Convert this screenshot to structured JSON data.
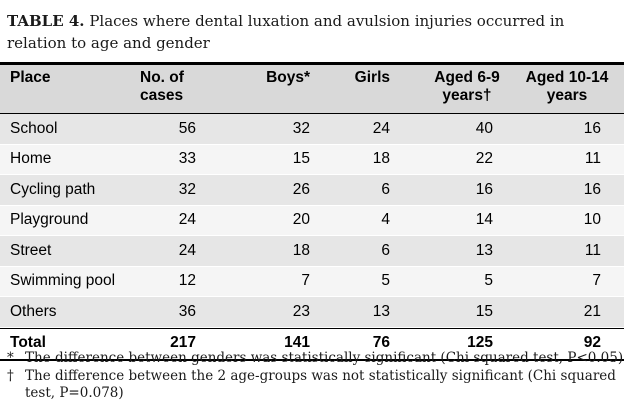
{
  "title": {
    "label": "TABLE 4.",
    "text": "Places where dental luxation and avulsion injuries occurred in relation to age and gender"
  },
  "table": {
    "headers": [
      "Place",
      "No. of cases",
      "Boys*",
      "Girls",
      "Aged 6-9 years†",
      "Aged 10-14 years"
    ],
    "rows": [
      [
        "School",
        "56",
        "32",
        "24",
        "40",
        "16"
      ],
      [
        "Home",
        "33",
        "15",
        "18",
        "22",
        "11"
      ],
      [
        "Cycling path",
        "32",
        "26",
        "6",
        "16",
        "16"
      ],
      [
        "Playground",
        "24",
        "20",
        "4",
        "14",
        "10"
      ],
      [
        "Street",
        "24",
        "18",
        "6",
        "13",
        "11"
      ],
      [
        "Swimming pool",
        "12",
        "7",
        "5",
        "5",
        "7"
      ],
      [
        "Others",
        "36",
        "23",
        "13",
        "15",
        "21"
      ]
    ],
    "total": [
      "Total",
      "217",
      "141",
      "76",
      "125",
      "92"
    ]
  },
  "footnotes": [
    {
      "mark": "*",
      "text": "The difference between genders was statistically significant (Chi squared test, P<0.05)"
    },
    {
      "mark": "†",
      "text": "The difference between the 2 age-groups was not statistically significant (Chi squared test, P=0.078)"
    }
  ]
}
